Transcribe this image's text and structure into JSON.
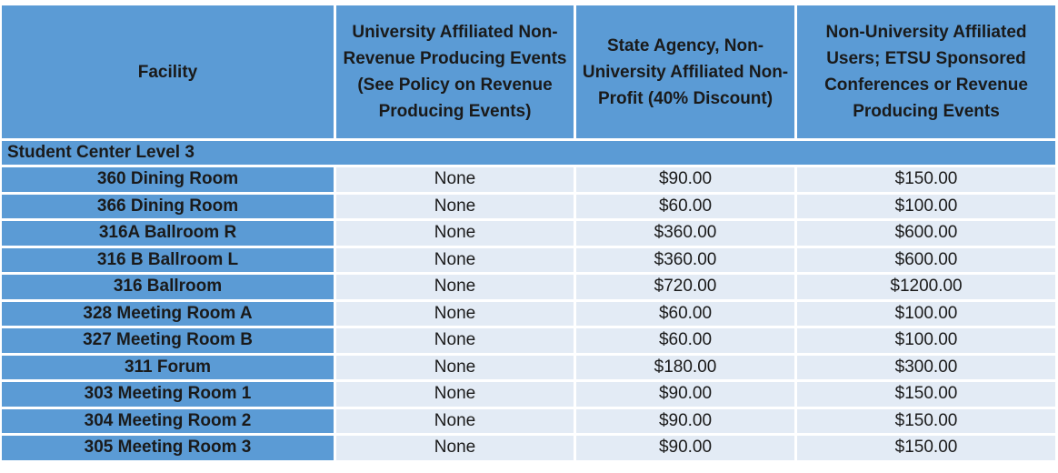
{
  "table": {
    "headers": [
      "Facility",
      "University Affiliated Non-Revenue Producing Events (See Policy on Revenue Producing Events)",
      "State Agency, Non-University Affiliated Non-Profit (40% Discount)",
      "Non-University Affiliated Users; ETSU Sponsored Conferences or Revenue Producing Events"
    ],
    "section": "Student Center Level 3",
    "rows": [
      [
        "360 Dining Room",
        "None",
        "$90.00",
        "$150.00"
      ],
      [
        "366 Dining Room",
        "None",
        "$60.00",
        "$100.00"
      ],
      [
        "316A Ballroom R",
        "None",
        "$360.00",
        "$600.00"
      ],
      [
        "316 B Ballroom L",
        "None",
        "$360.00",
        "$600.00"
      ],
      [
        "316 Ballroom",
        "None",
        "$720.00",
        "$1200.00"
      ],
      [
        "328 Meeting Room A",
        "None",
        "$60.00",
        "$100.00"
      ],
      [
        "327 Meeting Room B",
        "None",
        "$60.00",
        "$100.00"
      ],
      [
        "311 Forum",
        "None",
        "$180.00",
        "$300.00"
      ],
      [
        "303 Meeting Room 1",
        "None",
        "$90.00",
        "$150.00"
      ],
      [
        "304 Meeting Room 2",
        "None",
        "$90.00",
        "$150.00"
      ],
      [
        "305 Meeting Room 3",
        "None",
        "$90.00",
        "$150.00"
      ]
    ]
  }
}
